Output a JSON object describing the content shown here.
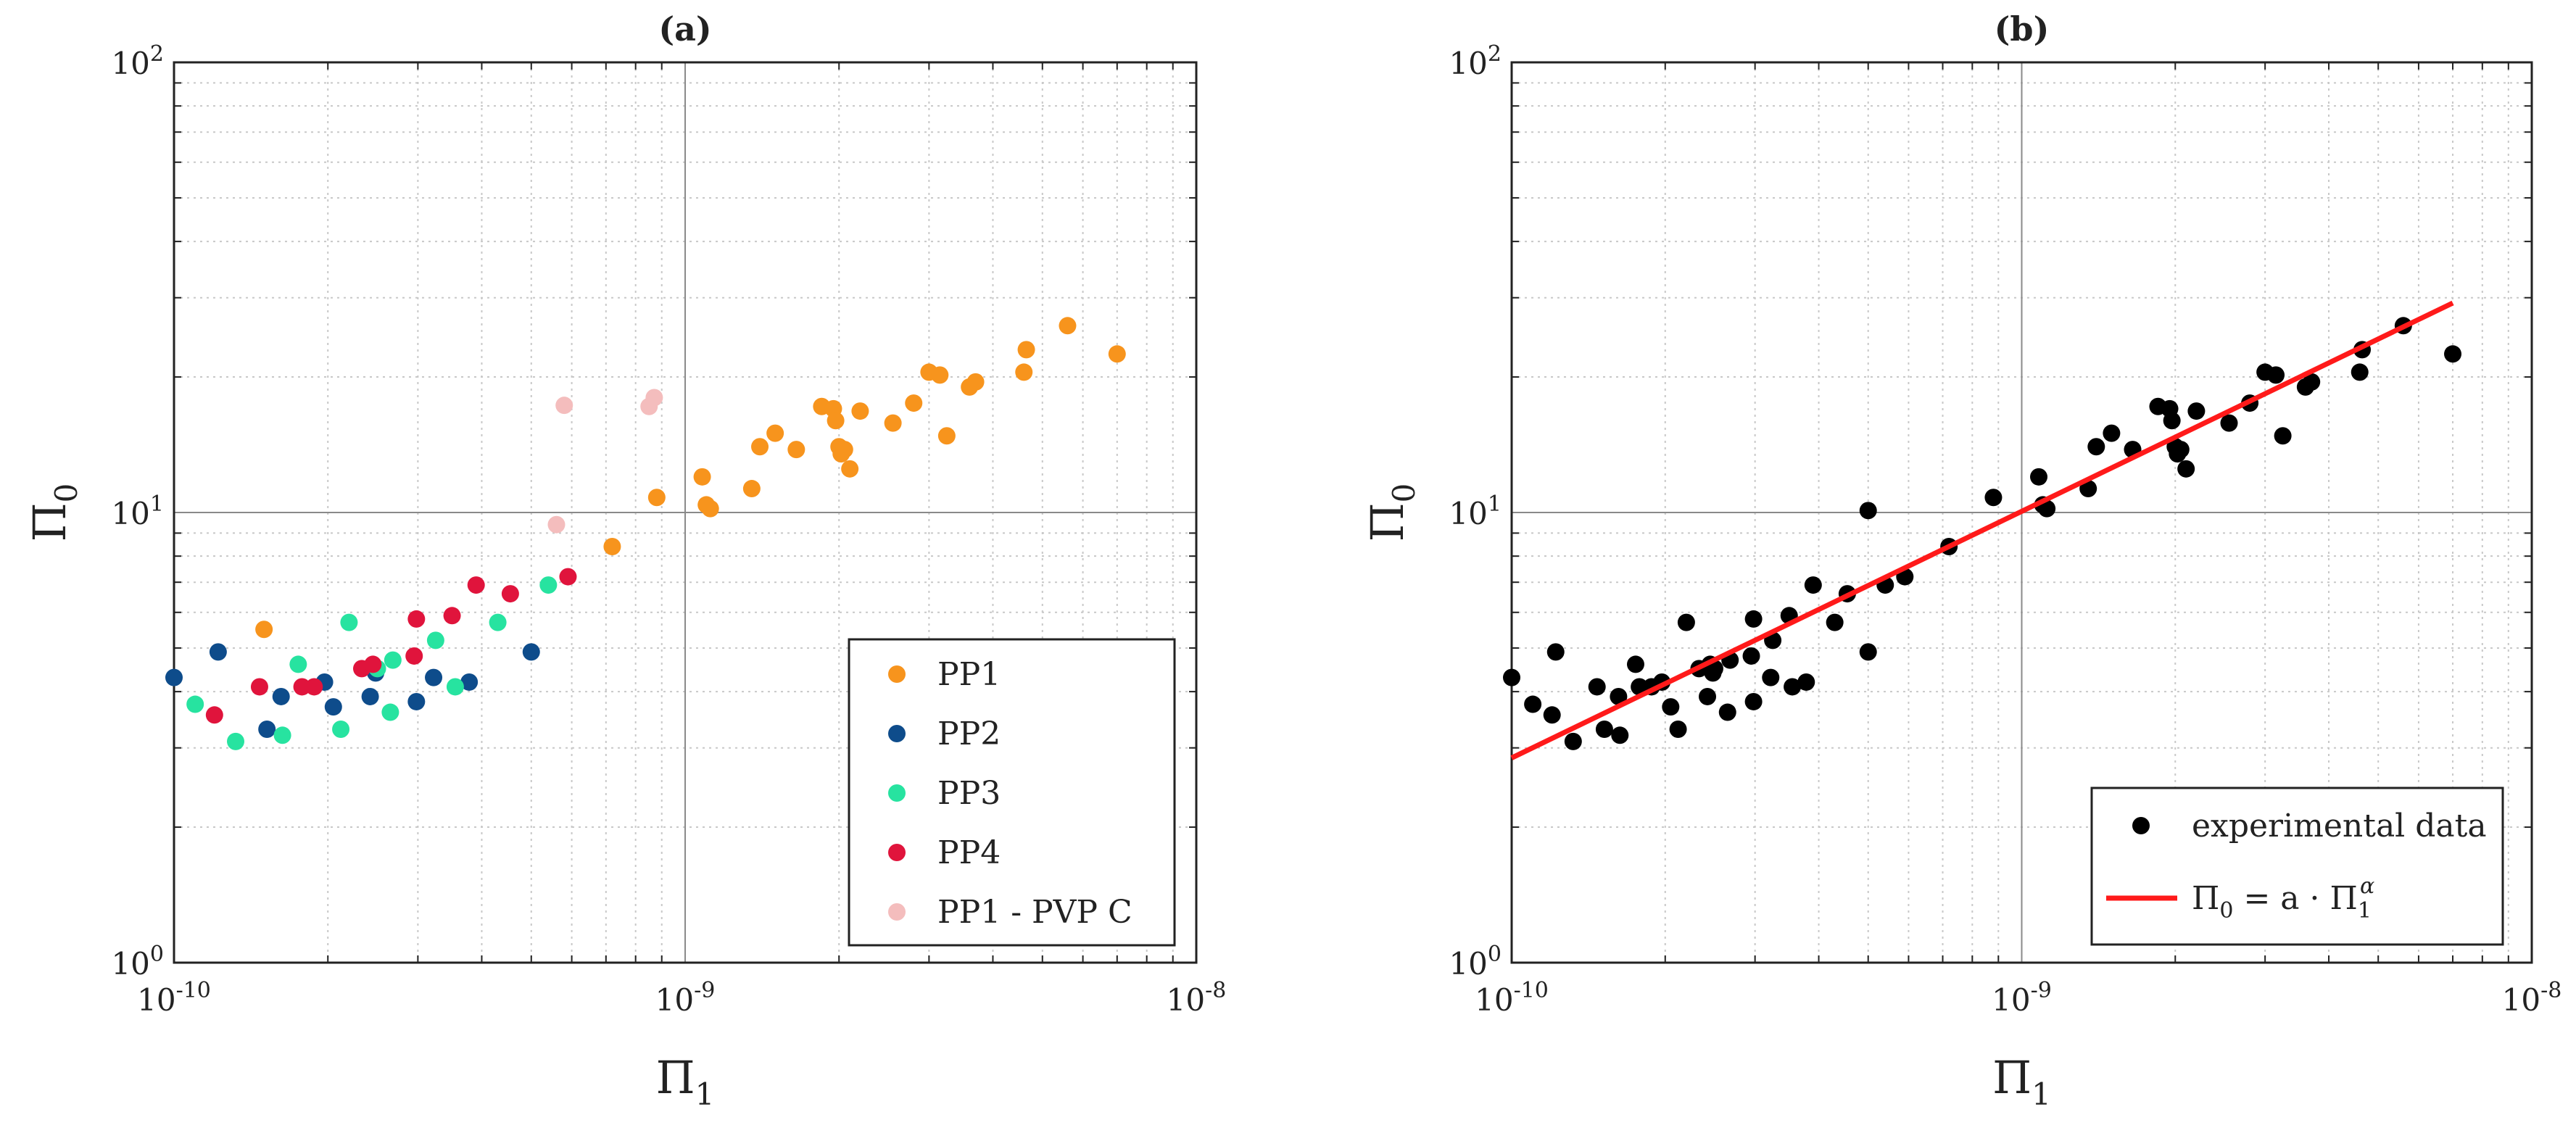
{
  "chart_data": [
    {
      "type": "scatter",
      "title": "(a)",
      "xscale": "log",
      "yscale": "log",
      "xlim": [
        1e-10,
        1e-08
      ],
      "ylim": [
        1,
        100
      ],
      "xlabel": {
        "base": "Π",
        "sub": "1"
      },
      "ylabel": {
        "base": "Π",
        "sub": "0"
      },
      "x_ticks": [
        {
          "value": 1e-10,
          "base": "10",
          "exp": "-10"
        },
        {
          "value": 1e-09,
          "base": "10",
          "exp": "-9"
        },
        {
          "value": 1e-08,
          "base": "10",
          "exp": "-8"
        }
      ],
      "y_ticks": [
        {
          "value": 1,
          "base": "10",
          "exp": "0"
        },
        {
          "value": 10,
          "base": "10",
          "exp": "1"
        },
        {
          "value": 100,
          "base": "10",
          "exp": "2"
        }
      ],
      "grid": true,
      "legend_position": "bottom-right",
      "series": [
        {
          "name": "PP1",
          "color": "#f7941d",
          "points": [
            [
              1.5e-10,
              5.5
            ],
            [
              7.2e-10,
              8.4
            ],
            [
              8.8e-10,
              10.8
            ],
            [
              1.08e-09,
              12.0
            ],
            [
              1.1e-09,
              10.4
            ],
            [
              1.12e-09,
              10.2
            ],
            [
              1.35e-09,
              11.3
            ],
            [
              1.4e-09,
              14.0
            ],
            [
              1.5e-09,
              15.0
            ],
            [
              1.65e-09,
              13.8
            ],
            [
              1.85e-09,
              17.2
            ],
            [
              1.95e-09,
              17.0
            ],
            [
              1.97e-09,
              16.0
            ],
            [
              2e-09,
              14.0
            ],
            [
              2.02e-09,
              13.5
            ],
            [
              2.05e-09,
              13.8
            ],
            [
              2.1e-09,
              12.5
            ],
            [
              2.2e-09,
              16.8
            ],
            [
              2.55e-09,
              15.8
            ],
            [
              2.8e-09,
              17.5
            ],
            [
              3e-09,
              20.5
            ],
            [
              3.15e-09,
              20.2
            ],
            [
              3.25e-09,
              14.8
            ],
            [
              3.6e-09,
              19.0
            ],
            [
              3.7e-09,
              19.5
            ],
            [
              4.6e-09,
              20.5
            ],
            [
              4.65e-09,
              23.0
            ],
            [
              5.6e-09,
              26.0
            ],
            [
              7e-09,
              22.5
            ]
          ]
        },
        {
          "name": "PP2",
          "color": "#0e4c8b",
          "points": [
            [
              1e-10,
              4.3
            ],
            [
              1.22e-10,
              4.9
            ],
            [
              1.52e-10,
              3.3
            ],
            [
              1.62e-10,
              3.9
            ],
            [
              1.97e-10,
              4.2
            ],
            [
              2.05e-10,
              3.7
            ],
            [
              2.42e-10,
              3.9
            ],
            [
              2.48e-10,
              4.4
            ],
            [
              2.98e-10,
              3.8
            ],
            [
              3.22e-10,
              4.3
            ],
            [
              3.78e-10,
              4.2
            ],
            [
              5e-10,
              4.9
            ]
          ]
        },
        {
          "name": "PP3",
          "color": "#27e3a0",
          "points": [
            [
              1.1e-10,
              3.75
            ],
            [
              1.32e-10,
              3.1
            ],
            [
              1.63e-10,
              3.2
            ],
            [
              1.75e-10,
              4.6
            ],
            [
              2.12e-10,
              3.3
            ],
            [
              2.2e-10,
              5.7
            ],
            [
              2.5e-10,
              4.5
            ],
            [
              2.65e-10,
              3.6
            ],
            [
              2.68e-10,
              4.7
            ],
            [
              3.25e-10,
              5.2
            ],
            [
              3.55e-10,
              4.1
            ],
            [
              4.3e-10,
              5.7
            ],
            [
              5.4e-10,
              6.9
            ]
          ]
        },
        {
          "name": "PP4",
          "color": "#e0143c",
          "points": [
            [
              1.2e-10,
              3.55
            ],
            [
              1.47e-10,
              4.1
            ],
            [
              1.78e-10,
              4.1
            ],
            [
              1.88e-10,
              4.1
            ],
            [
              2.33e-10,
              4.5
            ],
            [
              2.45e-10,
              4.6
            ],
            [
              2.95e-10,
              4.8
            ],
            [
              2.98e-10,
              5.8
            ],
            [
              3.5e-10,
              5.9
            ],
            [
              3.9e-10,
              6.9
            ],
            [
              4.55e-10,
              6.6
            ],
            [
              5.9e-10,
              7.2
            ]
          ]
        },
        {
          "name": "PP1 - PVP C",
          "color": "#f4bdbd",
          "points": [
            [
              5.6e-10,
              9.4
            ],
            [
              5.8e-10,
              17.3
            ],
            [
              8.5e-10,
              17.2
            ],
            [
              8.7e-10,
              18.0
            ]
          ]
        }
      ]
    },
    {
      "type": "scatter",
      "title": "(b)",
      "xscale": "log",
      "yscale": "log",
      "xlim": [
        1e-10,
        1e-08
      ],
      "ylim": [
        1,
        100
      ],
      "xlabel": {
        "base": "Π",
        "sub": "1"
      },
      "ylabel": {
        "base": "Π",
        "sub": "0"
      },
      "x_ticks": [
        {
          "value": 1e-10,
          "base": "10",
          "exp": "-10"
        },
        {
          "value": 1e-09,
          "base": "10",
          "exp": "-9"
        },
        {
          "value": 1e-08,
          "base": "10",
          "exp": "-8"
        }
      ],
      "y_ticks": [
        {
          "value": 1,
          "base": "10",
          "exp": "0"
        },
        {
          "value": 10,
          "base": "10",
          "exp": "1"
        },
        {
          "value": 100,
          "base": "10",
          "exp": "2"
        }
      ],
      "grid": true,
      "legend_position": "bottom-right",
      "series": [
        {
          "name": "experimental data",
          "color": "#000000",
          "points": [
            [
              1e-10,
              4.3
            ],
            [
              1.1e-10,
              3.75
            ],
            [
              1.2e-10,
              3.55
            ],
            [
              1.22e-10,
              4.9
            ],
            [
              1.32e-10,
              3.1
            ],
            [
              1.47e-10,
              4.1
            ],
            [
              1.52e-10,
              3.3
            ],
            [
              1.62e-10,
              3.9
            ],
            [
              1.63e-10,
              3.2
            ],
            [
              1.75e-10,
              4.6
            ],
            [
              1.78e-10,
              4.1
            ],
            [
              1.88e-10,
              4.1
            ],
            [
              1.97e-10,
              4.2
            ],
            [
              2.05e-10,
              3.7
            ],
            [
              2.12e-10,
              3.3
            ],
            [
              2.2e-10,
              5.7
            ],
            [
              2.33e-10,
              4.5
            ],
            [
              2.42e-10,
              3.9
            ],
            [
              2.45e-10,
              4.6
            ],
            [
              2.48e-10,
              4.4
            ],
            [
              2.5e-10,
              4.5
            ],
            [
              2.65e-10,
              3.6
            ],
            [
              2.68e-10,
              4.7
            ],
            [
              2.95e-10,
              4.8
            ],
            [
              2.98e-10,
              3.8
            ],
            [
              2.98e-10,
              5.8
            ],
            [
              3.22e-10,
              4.3
            ],
            [
              3.25e-10,
              5.2
            ],
            [
              3.5e-10,
              5.9
            ],
            [
              3.55e-10,
              4.1
            ],
            [
              3.78e-10,
              4.2
            ],
            [
              3.9e-10,
              6.9
            ],
            [
              4.3e-10,
              5.7
            ],
            [
              4.55e-10,
              6.6
            ],
            [
              5e-10,
              4.9
            ],
            [
              5e-10,
              10.1
            ],
            [
              5.4e-10,
              6.9
            ],
            [
              5.9e-10,
              7.2
            ],
            [
              7.2e-10,
              8.4
            ],
            [
              8.8e-10,
              10.8
            ],
            [
              1.08e-09,
              12.0
            ],
            [
              1.1e-09,
              10.4
            ],
            [
              1.12e-09,
              10.2
            ],
            [
              1.35e-09,
              11.3
            ],
            [
              1.4e-09,
              14.0
            ],
            [
              1.5e-09,
              15.0
            ],
            [
              1.65e-09,
              13.8
            ],
            [
              1.85e-09,
              17.2
            ],
            [
              1.95e-09,
              17.0
            ],
            [
              1.97e-09,
              16.0
            ],
            [
              2e-09,
              14.0
            ],
            [
              2.02e-09,
              13.5
            ],
            [
              2.05e-09,
              13.8
            ],
            [
              2.1e-09,
              12.5
            ],
            [
              2.2e-09,
              16.8
            ],
            [
              2.55e-09,
              15.8
            ],
            [
              2.8e-09,
              17.5
            ],
            [
              3e-09,
              20.5
            ],
            [
              3.15e-09,
              20.2
            ],
            [
              3.25e-09,
              14.8
            ],
            [
              3.6e-09,
              19.0
            ],
            [
              3.7e-09,
              19.5
            ],
            [
              4.6e-09,
              20.5
            ],
            [
              4.65e-09,
              23.0
            ],
            [
              5.6e-09,
              26.0
            ],
            [
              7e-09,
              22.5
            ]
          ]
        }
      ],
      "fit_line": {
        "color": "#ff1a1a",
        "x": [
          1e-10,
          7e-09
        ],
        "y": [
          2.85,
          29.2
        ],
        "legend": {
          "lhs_base": "Π",
          "lhs_sub": "0",
          "middle": " = a · ",
          "rhs_base": "Π",
          "rhs_sub": "1",
          "rhs_sup": "α"
        }
      }
    }
  ]
}
